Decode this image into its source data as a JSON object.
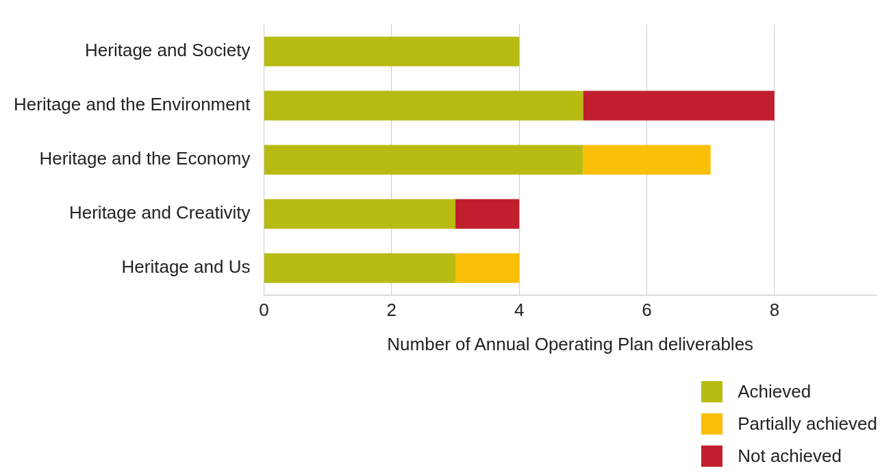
{
  "chart_data": {
    "type": "bar",
    "orientation": "horizontal",
    "stacked": true,
    "categories": [
      "Heritage and Society",
      "Heritage and the Environment",
      "Heritage and the Economy",
      "Heritage and Creativity",
      "Heritage and Us"
    ],
    "series": [
      {
        "name": "Achieved",
        "color": "#b8bb12",
        "values": [
          4,
          5,
          5,
          3,
          3
        ]
      },
      {
        "name": "Partially achieved",
        "color": "#fbbf07",
        "values": [
          0,
          0,
          2,
          0,
          1
        ]
      },
      {
        "name": "Not achieved",
        "color": "#c21f2e",
        "values": [
          0,
          3,
          0,
          1,
          0
        ]
      }
    ],
    "xlabel": "Number of Annual Operating Plan deliverables",
    "xlim": [
      0,
      9.6
    ],
    "xticks": [
      0,
      2,
      4,
      6,
      8
    ],
    "grid": "x",
    "legend": "bottom right"
  }
}
